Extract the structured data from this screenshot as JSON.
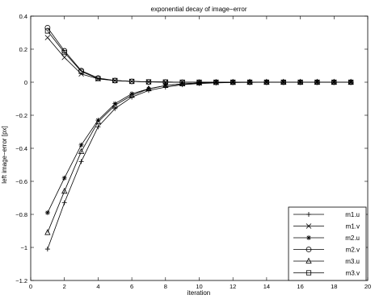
{
  "chart_data": {
    "type": "line",
    "title": "exponential decay of image−error",
    "xlabel": "iteration",
    "ylabel": "left image−error [px]",
    "xlim": [
      0,
      20
    ],
    "ylim": [
      -1.2,
      0.4
    ],
    "xticks": [
      0,
      2,
      4,
      6,
      8,
      10,
      12,
      14,
      16,
      18,
      20
    ],
    "yticks": [
      -1.2,
      -1,
      -0.8,
      -0.6,
      -0.4,
      -0.2,
      0,
      0.2,
      0.4
    ],
    "xtick_labels": [
      "0",
      "2",
      "4",
      "6",
      "8",
      "10",
      "12",
      "14",
      "16",
      "18",
      "20"
    ],
    "ytick_labels": [
      "−1.2",
      "−1",
      "−0.8",
      "−0.6",
      "−0.4",
      "−0.2",
      "0",
      "0.2",
      "0.4"
    ],
    "grid": false,
    "legend_position": "bottom-right",
    "line_color": "#000000",
    "x": [
      1,
      2,
      3,
      4,
      5,
      6,
      7,
      8,
      9,
      10,
      11,
      12,
      13,
      14,
      15,
      16,
      17,
      18,
      19
    ],
    "series": [
      {
        "name": "m1.u",
        "marker": "plus",
        "values": [
          -1.01,
          -0.73,
          -0.48,
          -0.27,
          -0.16,
          -0.09,
          -0.05,
          -0.03,
          -0.015,
          -0.008,
          -0.004,
          -0.002,
          -0.001,
          0,
          0,
          0,
          0,
          0,
          0
        ]
      },
      {
        "name": "m1.v",
        "marker": "x",
        "values": [
          0.27,
          0.15,
          0.05,
          0.02,
          0.01,
          0.005,
          0.002,
          0.001,
          0,
          0,
          0,
          0,
          0,
          0,
          0,
          0,
          0,
          0,
          0
        ]
      },
      {
        "name": "m2.u",
        "marker": "star",
        "values": [
          -0.79,
          -0.58,
          -0.38,
          -0.23,
          -0.13,
          -0.07,
          -0.04,
          -0.02,
          -0.01,
          -0.005,
          -0.002,
          -0.001,
          0,
          0,
          0,
          0,
          0,
          0,
          0
        ]
      },
      {
        "name": "m2.v",
        "marker": "circle",
        "values": [
          0.33,
          0.19,
          0.07,
          0.025,
          0.01,
          0.005,
          0.002,
          0.001,
          0,
          0,
          0,
          0,
          0,
          0,
          0,
          0,
          0,
          0,
          0
        ]
      },
      {
        "name": "m3.u",
        "marker": "triangle",
        "values": [
          -0.91,
          -0.66,
          -0.42,
          -0.24,
          -0.14,
          -0.08,
          -0.04,
          -0.02,
          -0.01,
          -0.005,
          -0.002,
          -0.001,
          0,
          0,
          0,
          0,
          0,
          0,
          0
        ]
      },
      {
        "name": "m3.v",
        "marker": "square",
        "values": [
          0.31,
          0.18,
          0.065,
          0.022,
          0.01,
          0.005,
          0.002,
          0.001,
          0,
          0,
          0,
          0,
          0,
          0,
          0,
          0,
          0,
          0,
          0
        ]
      }
    ]
  }
}
